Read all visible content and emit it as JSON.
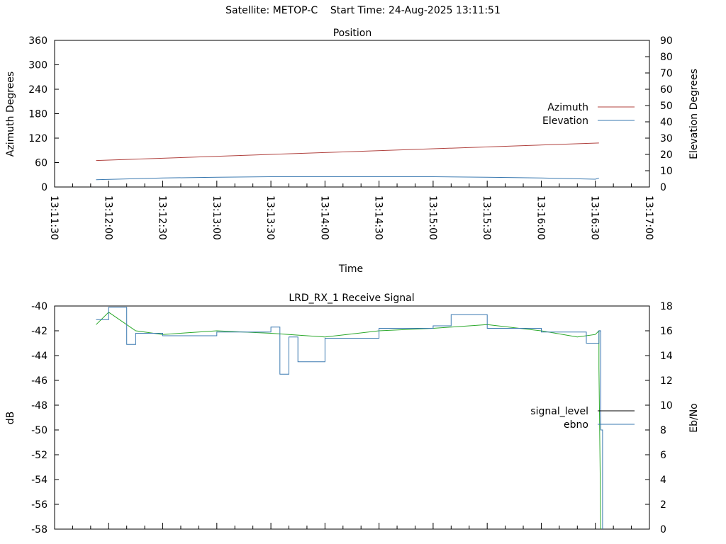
{
  "page_title": "Satellite: METOP-C    Start Time: 24-Aug-2025 13:11:51",
  "colors": {
    "azimuth": "#b0413e",
    "elevation": "#3a79b0",
    "signal_level": "#000000",
    "ebno_blue": "#3a79b0",
    "ebno_green": "#2aa82a",
    "axis": "#000000"
  },
  "chart_data": [
    {
      "type": "line",
      "title": "Position",
      "xlabel": "Time",
      "ylabel": "Azimuth Degrees",
      "y2label": "Elevation Degrees",
      "ylim": [
        0,
        360
      ],
      "y2lim": [
        0,
        90
      ],
      "yticks": [
        "0",
        "60",
        "120",
        "180",
        "240",
        "300",
        "360"
      ],
      "y2ticks": [
        "0",
        "10",
        "20",
        "30",
        "40",
        "50",
        "60",
        "70",
        "80",
        "90"
      ],
      "xticks": [
        "13:11:30",
        "13:12:00",
        "13:12:30",
        "13:13:00",
        "13:13:30",
        "13:14:00",
        "13:14:30",
        "13:15:00",
        "13:15:30",
        "13:16:00",
        "13:16:30",
        "13:17:00"
      ],
      "legend_position": "right",
      "series": [
        {
          "name": "Azimuth",
          "axis": "left",
          "x": [
            "13:11:53",
            "13:16:32"
          ],
          "values": [
            65,
            108
          ]
        },
        {
          "name": "Elevation",
          "axis": "right",
          "x": [
            "13:11:53",
            "13:12:30",
            "13:13:00",
            "13:13:30",
            "13:14:00",
            "13:14:30",
            "13:15:00",
            "13:15:30",
            "13:16:00",
            "13:16:30",
            "13:16:32"
          ],
          "values": [
            4.5,
            5.5,
            6.0,
            6.3,
            6.3,
            6.3,
            6.3,
            6.0,
            5.5,
            4.8,
            5.5
          ]
        }
      ]
    },
    {
      "type": "line",
      "title": "LRD_RX_1 Receive Signal",
      "ylabel": "dB",
      "y2label": "Eb/No",
      "ylim": [
        -58,
        -40
      ],
      "y2lim": [
        0,
        18
      ],
      "yticks": [
        "-58",
        "-56",
        "-54",
        "-52",
        "-50",
        "-48",
        "-46",
        "-44",
        "-42",
        "-40"
      ],
      "y2ticks": [
        "0",
        "2",
        "4",
        "6",
        "8",
        "10",
        "12",
        "14",
        "16",
        "18"
      ],
      "xlim": [
        "13:11:30",
        "13:17:00"
      ],
      "legend_position": "right",
      "series": [
        {
          "name": "signal_level",
          "axis": "left",
          "x": [
            "13:11:53",
            "13:12:00",
            "13:12:15",
            "13:12:30",
            "13:13:00",
            "13:13:30",
            "13:14:00",
            "13:14:30",
            "13:15:00",
            "13:15:30",
            "13:16:00",
            "13:16:20",
            "13:16:30",
            "13:16:32",
            "13:16:32",
            "13:16:33"
          ],
          "values": [
            -41.5,
            -40.5,
            -42.0,
            -42.3,
            -42.0,
            -42.2,
            -42.5,
            -42.0,
            -41.8,
            -41.5,
            -42.0,
            -42.5,
            -42.3,
            -42.0,
            -45.0,
            -58.0
          ]
        },
        {
          "name": "ebno",
          "axis": "right",
          "x": [
            "13:11:53",
            "13:12:00",
            "13:12:05",
            "13:12:10",
            "13:12:15",
            "13:12:30",
            "13:13:00",
            "13:13:30",
            "13:13:35",
            "13:13:40",
            "13:13:45",
            "13:14:00",
            "13:14:30",
            "13:15:00",
            "13:15:10",
            "13:15:30",
            "13:16:00",
            "13:16:25",
            "13:16:32",
            "13:16:33",
            "13:16:34"
          ],
          "values": [
            16.9,
            17.9,
            17.9,
            14.9,
            15.8,
            15.6,
            15.9,
            16.3,
            12.5,
            15.5,
            13.5,
            15.4,
            16.2,
            16.4,
            17.3,
            16.2,
            15.9,
            15.0,
            16.0,
            8.0,
            0.0
          ]
        }
      ]
    }
  ]
}
